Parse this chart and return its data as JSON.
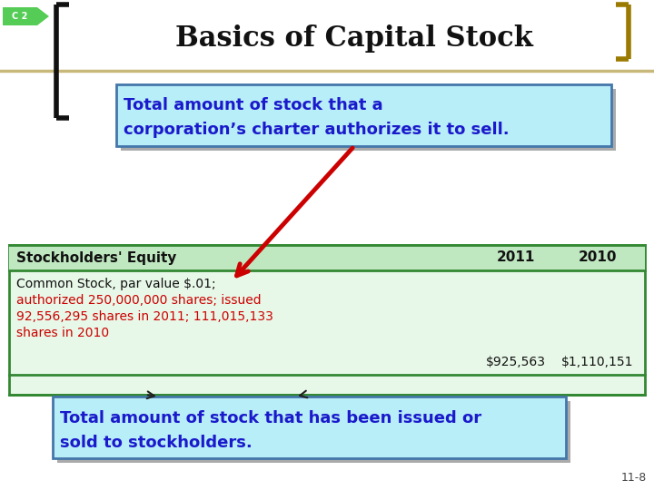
{
  "title": "Basics of Capital Stock",
  "title_fontsize": 22,
  "background_color": "#ffffff",
  "c2_label": "C 2",
  "c2_bg": "#55cc55",
  "bracket_color_left": "#111111",
  "bracket_color_right": "#9a7a00",
  "header_line_color": "#c8b87a",
  "table_bg": "#e8f8e8",
  "table_header_bg": "#c0e8c0",
  "table_border_color": "#338833",
  "box1_bg": "#b8eef8",
  "box1_border": "#4477aa",
  "box1_text_line1": "Total amount of stock that a",
  "box1_text_line2": "corporation’s charter authorizes it to sell.",
  "box1_text_color": "#1a1acc",
  "box2_bg": "#b8eef8",
  "box2_border": "#4477aa",
  "box2_text_line1": "Total amount of stock that has been issued or",
  "box2_text_line2": "sold to stockholders.",
  "box2_text_color": "#1a1acc",
  "table_header_text": "Stockholders' Equity",
  "col2011": "2011",
  "col2010": "2010",
  "row1_black": "Common Stock, par value $.01;",
  "row1_red_line1": "authorized 250,000,000 shares; issued",
  "row1_red_line2": "92,556,295 shares in 2011; 111,015,133",
  "row1_red_line3": "shares in 2010",
  "row1_val2011": "$925,563",
  "row1_val2010": "$1,110,151",
  "red_color": "#cc0000",
  "footer_text": "11-8",
  "arrow1_color": "#cc0000",
  "arrow2_color": "#222222"
}
